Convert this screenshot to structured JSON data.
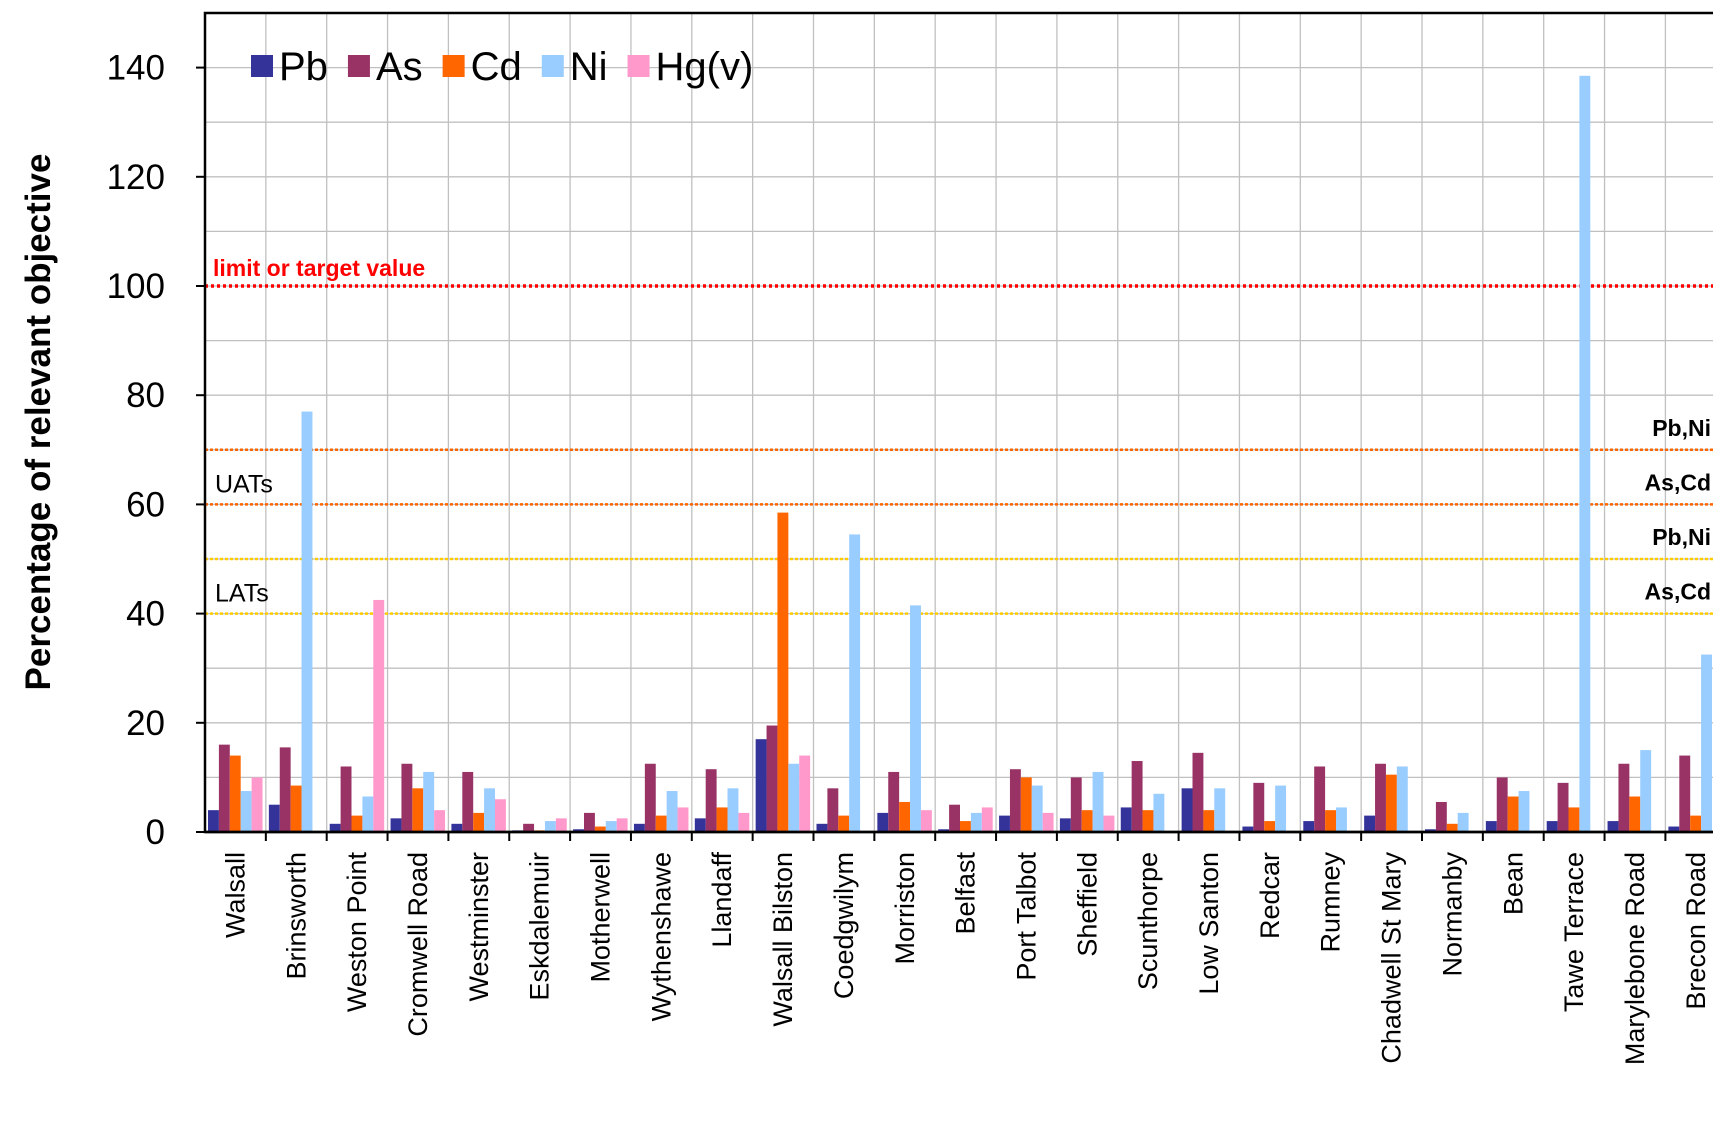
{
  "chart_data": {
    "type": "bar",
    "y_label": "Percentage of relevant objective",
    "categories": [
      "Walsall",
      "Brinsworth",
      "Weston Point",
      "Cromwell Road",
      "Westminster",
      "Eskdalemuir",
      "Motherwell",
      "Wythenshawe",
      "Llandaff",
      "Walsall Bilston",
      "Coedgwilym",
      "Morriston",
      "Belfast",
      "Port Talbot",
      "Sheffield",
      "Scunthorpe",
      "Low Santon",
      "Redcar",
      "Rumney",
      "Chadwell St Mary",
      "Normanby",
      "Bean",
      "Tawe Terrace",
      "Marylebone Road",
      "Brecon Road"
    ],
    "series": [
      {
        "name": "Pb",
        "color": "#333399",
        "values": [
          4,
          5,
          1.5,
          2.5,
          1.5,
          0.3,
          0.5,
          1.5,
          2.5,
          17,
          1.5,
          3.5,
          0.5,
          3,
          2.5,
          4.5,
          8,
          1,
          2,
          3,
          0.5,
          2,
          2,
          2,
          1
        ]
      },
      {
        "name": "As",
        "color": "#993366",
        "values": [
          16,
          15.5,
          12,
          12.5,
          11,
          1.5,
          3.5,
          12.5,
          11.5,
          19.5,
          8,
          11,
          5,
          11.5,
          10,
          13,
          14.5,
          9,
          12,
          12.5,
          5.5,
          10,
          9,
          12.5,
          14
        ]
      },
      {
        "name": "Cd",
        "color": "#ff6600",
        "values": [
          14,
          8.5,
          3,
          8,
          3.5,
          0.3,
          1,
          3,
          4.5,
          58.5,
          3,
          5.5,
          2,
          10,
          4,
          4,
          4,
          2,
          4,
          10.5,
          1.5,
          6.5,
          4.5,
          6.5,
          3
        ]
      },
      {
        "name": "Ni",
        "color": "#99ccff",
        "values": [
          7.5,
          77,
          6.5,
          11,
          8,
          2,
          2,
          7.5,
          8,
          12.5,
          54.5,
          41.5,
          3.5,
          8.5,
          11,
          7,
          8,
          8.5,
          4.5,
          12,
          3.5,
          7.5,
          138.5,
          15,
          32.5
        ]
      },
      {
        "name": "Hg(v)",
        "color": "#ff99cc",
        "values": [
          10,
          null,
          42.5,
          4,
          6,
          2.5,
          2.5,
          4.5,
          3.5,
          14,
          null,
          4,
          4.5,
          3.5,
          3,
          null,
          null,
          null,
          null,
          null,
          null,
          null,
          null,
          null,
          null
        ]
      }
    ],
    "ylim": [
      0,
      150
    ],
    "yticks": [
      0,
      20,
      40,
      60,
      80,
      100,
      120,
      140
    ],
    "minor_yticks": [
      10,
      30,
      50,
      70,
      90,
      110,
      130
    ],
    "grid": true,
    "legend": "top-left",
    "limit": {
      "value": 100,
      "label": "limit or target value",
      "color": "#ff0000"
    },
    "thresholds": [
      {
        "name": "UATs",
        "color": "#ff6600",
        "lines": [
          {
            "value": 70,
            "label": "Pb,Ni"
          },
          {
            "value": 60,
            "label": "As,Cd"
          }
        ]
      },
      {
        "name": "LATs",
        "color": "#ffcc00",
        "lines": [
          {
            "value": 50,
            "label": "Pb,Ni"
          },
          {
            "value": 40,
            "label": "As,Cd"
          }
        ]
      }
    ]
  }
}
